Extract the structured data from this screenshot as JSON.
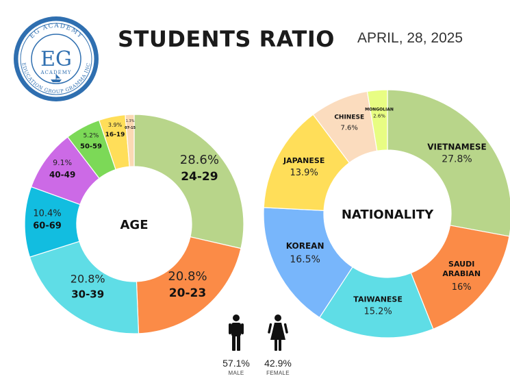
{
  "header": {
    "title": "STUDENTS RATIO",
    "date": "APRIL, 28, 2025"
  },
  "logo": {
    "ring_top": "EG ACADEMY",
    "ring_bottom": "EDUCATION GROUP GRAMMA INC",
    "monogram": "EG",
    "sub": "ACADEMY"
  },
  "gender": {
    "male_value": "57.1%",
    "male_label": "MALE",
    "female_value": "42.9%",
    "female_label": "FEMALE"
  },
  "chart_data": [
    {
      "type": "pie",
      "center_label": "AGE",
      "slices": [
        {
          "label": "24-29",
          "value": 28.6,
          "value_text": "28.6%",
          "color": "#b8d58a"
        },
        {
          "label": "20-23",
          "value": 20.8,
          "value_text": "20.8%",
          "color": "#fb8b47"
        },
        {
          "label": "30-39",
          "value": 20.8,
          "value_text": "20.8%",
          "color": "#5fdde6"
        },
        {
          "label": "60-69",
          "value": 10.4,
          "value_text": "10.4%",
          "color": "#12bde0"
        },
        {
          "label": "40-49",
          "value": 9.1,
          "value_text": "9.1%",
          "color": "#cc6ae6"
        },
        {
          "label": "50-59",
          "value": 5.2,
          "value_text": "5.2%",
          "color": "#7cd957"
        },
        {
          "label": "16-19",
          "value": 3.9,
          "value_text": "3.9%",
          "color": "#ffde59"
        },
        {
          "label": "07-15",
          "value": 1.3,
          "value_text": "1.3%",
          "color": "#fbd9b4"
        }
      ]
    },
    {
      "type": "pie",
      "center_label": "NATIONALITY",
      "slices": [
        {
          "label": "VIETNAMESE",
          "value": 27.8,
          "value_text": "27.8%",
          "color": "#b8d58a"
        },
        {
          "label": "SAUDI ARABIAN",
          "value": 16,
          "value_text": "16%",
          "color": "#fb8b47"
        },
        {
          "label": "TAIWANESE",
          "value": 15.2,
          "value_text": "15.2%",
          "color": "#5fdde6"
        },
        {
          "label": "KOREAN",
          "value": 16.5,
          "value_text": "16.5%",
          "color": "#78b6fb"
        },
        {
          "label": "JAPANESE",
          "value": 13.9,
          "value_text": "13.9%",
          "color": "#ffde59"
        },
        {
          "label": "CHINESE",
          "value": 7.6,
          "value_text": "7.6%",
          "color": "#fbdcbe"
        },
        {
          "label": "MONGOLIAN",
          "value": 2.6,
          "value_text": "2.6%",
          "color": "#e8fd83"
        }
      ]
    }
  ]
}
